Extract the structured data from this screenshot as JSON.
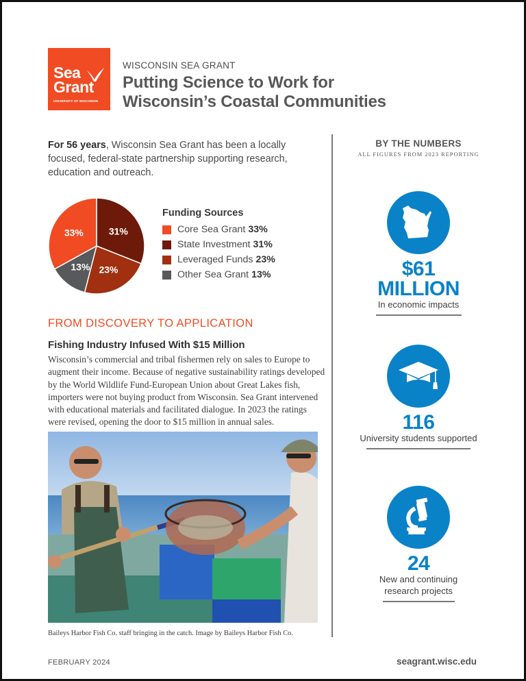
{
  "logo": {
    "line1": "Sea",
    "line2": "Grant",
    "line3": "UNIVERSITY OF WISCONSIN",
    "color": "#f04b23"
  },
  "header": {
    "eyebrow": "WISCONSIN SEA GRANT",
    "title_line1": "Putting Science to Work for",
    "title_line2": "Wisconsin’s Coastal Communities"
  },
  "intro": {
    "bold": "For 56 years",
    "text": ", Wisconsin Sea Grant has been a locally focused, federal-state partnership supporting research, education and outreach."
  },
  "chart_data": {
    "type": "pie",
    "title": "Funding Sources",
    "categories": [
      "Core Sea Grant",
      "State Investment",
      "Leveraged Funds",
      "Other Sea Grant"
    ],
    "values": [
      33,
      31,
      23,
      13
    ],
    "unit": "%",
    "colors": [
      "#f04b23",
      "#6e1a0a",
      "#a0300f",
      "#58595b"
    ],
    "slice_labels": [
      "33%",
      "31%",
      "23%",
      "13%"
    ],
    "legend_position": "right",
    "start_angle": "12 o'clock, clockwise: State Investment, Leveraged Funds, Other Sea Grant, Core Sea Grant"
  },
  "legend": {
    "title": "Funding Sources",
    "items": [
      {
        "label": "Core Sea Grant",
        "value": "33%",
        "color": "#f04b23"
      },
      {
        "label": "State Investment",
        "value": "31%",
        "color": "#6e1a0a"
      },
      {
        "label": "Leveraged Funds",
        "value": "23%",
        "color": "#a0300f"
      },
      {
        "label": "Other Sea Grant",
        "value": "13%",
        "color": "#58595b"
      }
    ]
  },
  "section": {
    "heading": "FROM DISCOVERY TO APPLICATION",
    "story_title": "Fishing Industry Infused With $15 Million",
    "story_body": "Wisconsin’s commercial and tribal fishermen rely on sales to Europe to augment their income. Because of negative sustainability ratings developed by the World Wildlife Fund-European Union about Great Lakes fish, importers were not buying product from Wisconsin. Sea Grant intervened with educational materials and facilitated dialogue. In 2023 the ratings were revised, opening the door to $15 million in annual sales."
  },
  "photo": {
    "caption": "Baileys Harbor Fish Co. staff bringing in the catch. Image by Baileys Harbor Fish Co."
  },
  "numbers": {
    "title": "BY THE NUMBERS",
    "subtitle": "ALL FIGURES FROM 2023 REPORTING",
    "accent": "#0a82c8",
    "stats": [
      {
        "icon": "wisconsin-map-icon",
        "value_line1": "$61",
        "value_line2": "MILLION",
        "desc": "In economic impacts"
      },
      {
        "icon": "graduation-cap-icon",
        "value_line1": "116",
        "desc": "University students supported"
      },
      {
        "icon": "microscope-icon",
        "value_line1": "24",
        "desc_line1": "New and continuing",
        "desc_line2": "research projects"
      }
    ]
  },
  "footer": {
    "date": "FEBRUARY 2024",
    "url": "seagrant.wisc.edu"
  }
}
